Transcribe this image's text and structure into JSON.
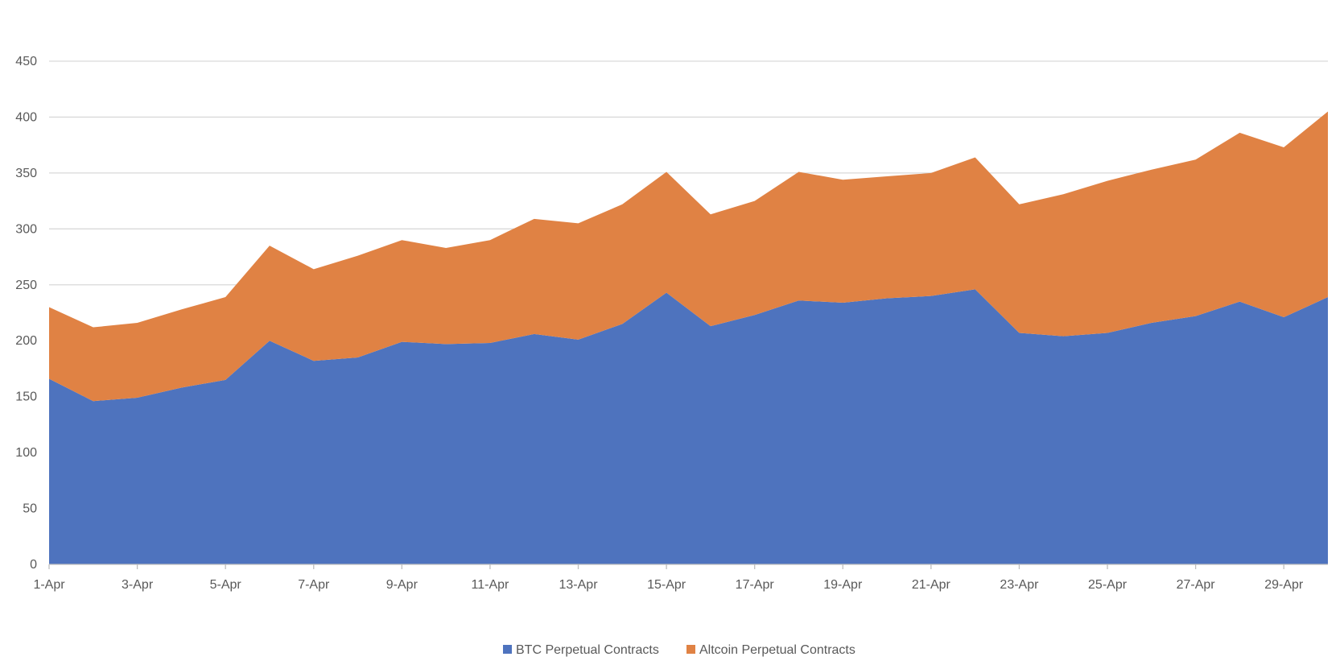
{
  "chart_data": {
    "type": "area",
    "stacked": true,
    "categories": [
      "1-Apr",
      "2-Apr",
      "3-Apr",
      "4-Apr",
      "5-Apr",
      "6-Apr",
      "7-Apr",
      "8-Apr",
      "9-Apr",
      "10-Apr",
      "11-Apr",
      "12-Apr",
      "13-Apr",
      "14-Apr",
      "15-Apr",
      "16-Apr",
      "17-Apr",
      "18-Apr",
      "19-Apr",
      "20-Apr",
      "21-Apr",
      "22-Apr",
      "23-Apr",
      "24-Apr",
      "25-Apr",
      "26-Apr",
      "27-Apr",
      "28-Apr",
      "29-Apr",
      "30-Apr"
    ],
    "x_tick_labels": [
      "1-Apr",
      "3-Apr",
      "5-Apr",
      "7-Apr",
      "9-Apr",
      "11-Apr",
      "13-Apr",
      "15-Apr",
      "17-Apr",
      "19-Apr",
      "21-Apr",
      "23-Apr",
      "25-Apr",
      "27-Apr",
      "29-Apr"
    ],
    "y_ticks": [
      0,
      50,
      100,
      150,
      200,
      250,
      300,
      350,
      400,
      450
    ],
    "ylim": [
      0,
      450
    ],
    "grid": true,
    "legend_position": "bottom",
    "series": [
      {
        "name": "BTC Perpetual Contracts",
        "color": "#4E73BE",
        "values": [
          166,
          146,
          149,
          158,
          165,
          200,
          182,
          185,
          199,
          197,
          198,
          206,
          201,
          215,
          243,
          213,
          223,
          236,
          234,
          238,
          240,
          246,
          207,
          204,
          207,
          216,
          222,
          235,
          221,
          239
        ]
      },
      {
        "name": "Altcoin Perpetual Contracts",
        "color": "#E08244",
        "values": [
          64,
          66,
          67,
          70,
          74,
          85,
          82,
          91,
          91,
          86,
          92,
          103,
          104,
          107,
          108,
          100,
          102,
          115,
          110,
          109,
          110,
          118,
          115,
          127,
          136,
          137,
          140,
          151,
          152,
          166
        ]
      }
    ],
    "gridline_color": "#D9D9D9",
    "axis_color": "#BFBFBF"
  }
}
